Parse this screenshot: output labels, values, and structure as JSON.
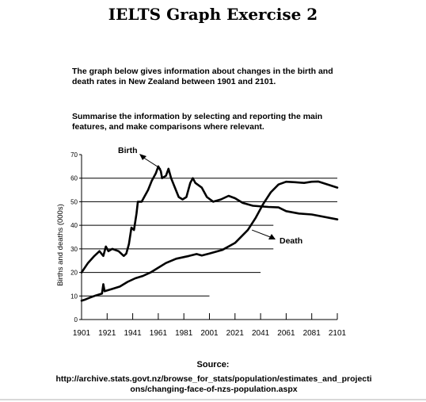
{
  "page": {
    "title": "IELTS Graph Exercise 2",
    "task_line_1": "The graph below gives information about changes in the birth and death rates in New Zealand between 1901 and 2101.",
    "task_line_2": "Summarise the information by selecting and reporting the main features, and make comparisons where relevant.",
    "source_label": "Source:",
    "source_url": "http://archive.stats.govt.nz/browse_for_stats/population/estimates_and_projections/changing-face-of-nzs-population.aspx"
  },
  "chart_data": {
    "type": "line",
    "title": "",
    "xlabel": "",
    "ylabel": "Births and deaths (000s)",
    "xlim": [
      1901,
      2101
    ],
    "ylim": [
      0,
      70
    ],
    "x_ticks": [
      "1901",
      "1921",
      "1941",
      "1961",
      "1981",
      "2001",
      "2021",
      "2041",
      "2061",
      "2081",
      "2101"
    ],
    "y_ticks": [
      "0",
      "10",
      "20",
      "30",
      "40",
      "50",
      "60",
      "70"
    ],
    "grid": "horizontal",
    "series": [
      {
        "name": "Birth",
        "color": "#000000",
        "points": [
          [
            1901,
            20
          ],
          [
            1906,
            24
          ],
          [
            1911,
            27
          ],
          [
            1915,
            29
          ],
          [
            1918,
            27
          ],
          [
            1920,
            31
          ],
          [
            1922,
            29
          ],
          [
            1925,
            30
          ],
          [
            1930,
            29
          ],
          [
            1934,
            27
          ],
          [
            1936,
            28
          ],
          [
            1938,
            32
          ],
          [
            1940,
            39
          ],
          [
            1942,
            38
          ],
          [
            1944,
            45
          ],
          [
            1945,
            50
          ],
          [
            1948,
            50
          ],
          [
            1950,
            52
          ],
          [
            1953,
            55
          ],
          [
            1956,
            59
          ],
          [
            1959,
            62
          ],
          [
            1961,
            65
          ],
          [
            1963,
            63
          ],
          [
            1964,
            60
          ],
          [
            1967,
            61
          ],
          [
            1969,
            64
          ],
          [
            1971,
            60
          ],
          [
            1974,
            56
          ],
          [
            1977,
            52
          ],
          [
            1980,
            51
          ],
          [
            1983,
            52
          ],
          [
            1986,
            58
          ],
          [
            1988,
            60
          ],
          [
            1990,
            58
          ],
          [
            1995,
            56
          ],
          [
            1999,
            52
          ],
          [
            2004,
            50
          ],
          [
            2010,
            51
          ],
          [
            2016,
            52.5
          ],
          [
            2021,
            51.5
          ],
          [
            2027,
            49.5
          ],
          [
            2035,
            48.3
          ],
          [
            2047,
            47.8
          ],
          [
            2055,
            47.6
          ],
          [
            2061,
            46
          ],
          [
            2071,
            45
          ],
          [
            2081,
            44.6
          ],
          [
            2101,
            42.5
          ]
        ]
      },
      {
        "name": "Death",
        "color": "#000000",
        "points": [
          [
            1901,
            8
          ],
          [
            1904,
            8.5
          ],
          [
            1907,
            9.2
          ],
          [
            1912,
            10.2
          ],
          [
            1917,
            11
          ],
          [
            1918,
            15
          ],
          [
            1919,
            12
          ],
          [
            1925,
            13
          ],
          [
            1931,
            14
          ],
          [
            1937,
            16
          ],
          [
            1943,
            17.5
          ],
          [
            1949,
            18.5
          ],
          [
            1955,
            20
          ],
          [
            1961,
            22
          ],
          [
            1967,
            24
          ],
          [
            1975,
            25.8
          ],
          [
            1985,
            27
          ],
          [
            1991,
            27.8
          ],
          [
            1995,
            27.2
          ],
          [
            2001,
            28
          ],
          [
            2011,
            29.5
          ],
          [
            2021,
            32.5
          ],
          [
            2031,
            38
          ],
          [
            2037,
            43
          ],
          [
            2043,
            49
          ],
          [
            2049,
            54
          ],
          [
            2055,
            57.3
          ],
          [
            2061,
            58.5
          ],
          [
            2068,
            58.3
          ],
          [
            2075,
            58
          ],
          [
            2081,
            58.5
          ],
          [
            2086,
            58.6
          ],
          [
            2094,
            57.2
          ],
          [
            2101,
            56
          ]
        ]
      }
    ],
    "annotations": [
      {
        "text": "Birth",
        "points_to": [
          1963,
          63
        ]
      },
      {
        "text": "Death",
        "points_to": [
          2033,
          37
        ]
      }
    ]
  }
}
